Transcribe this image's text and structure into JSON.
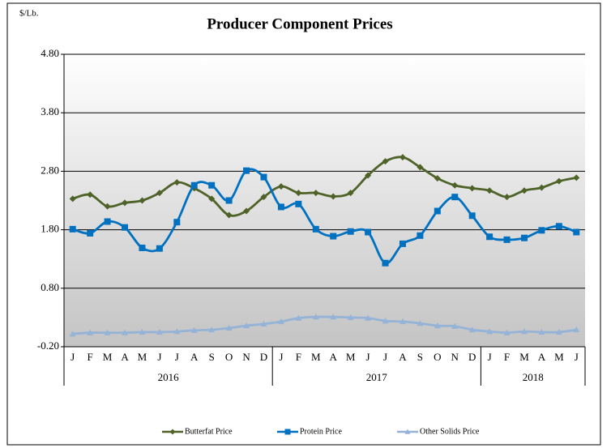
{
  "chart_data": {
    "type": "line",
    "title": "Producer Component Prices",
    "y_label": "$/Lb.",
    "categories": [
      "J",
      "F",
      "M",
      "A",
      "M",
      "J",
      "J",
      "A",
      "S",
      "O",
      "N",
      "D",
      "J",
      "F",
      "M",
      "A",
      "M",
      "J",
      "J",
      "A",
      "S",
      "O",
      "N",
      "D",
      "J",
      "F",
      "M",
      "A",
      "M",
      "J"
    ],
    "groups": [
      {
        "label": "2016",
        "count": 12
      },
      {
        "label": "2017",
        "count": 12
      },
      {
        "label": "2018",
        "count": 6
      }
    ],
    "ylim": [
      -0.2,
      4.8
    ],
    "yticks": [
      {
        "value": -0.2,
        "label": "-0.20"
      },
      {
        "value": 0.8,
        "label": "0.80"
      },
      {
        "value": 1.8,
        "label": "1.80"
      },
      {
        "value": 2.8,
        "label": "2.80"
      },
      {
        "value": 3.8,
        "label": "3.80"
      },
      {
        "value": 4.8,
        "label": "4.80"
      }
    ],
    "grid": true,
    "smooth": true,
    "legend": "bottom",
    "series": [
      {
        "name": "Butterfat Price",
        "color": "#4f6228",
        "marker": "diamond",
        "values": [
          2.33,
          2.4,
          2.2,
          2.26,
          2.3,
          2.43,
          2.61,
          2.51,
          2.33,
          2.05,
          2.12,
          2.36,
          2.54,
          2.43,
          2.43,
          2.37,
          2.43,
          2.73,
          2.97,
          3.04,
          2.87,
          2.68,
          2.56,
          2.51,
          2.47,
          2.36,
          2.47,
          2.52,
          2.63,
          2.69
        ]
      },
      {
        "name": "Protein Price",
        "color": "#0070c0",
        "marker": "square",
        "values": [
          1.81,
          1.74,
          1.94,
          1.84,
          1.49,
          1.48,
          1.93,
          2.56,
          2.56,
          2.3,
          2.81,
          2.7,
          2.19,
          2.24,
          1.81,
          1.69,
          1.77,
          1.76,
          1.23,
          1.56,
          1.7,
          2.12,
          2.36,
          2.04,
          1.68,
          1.63,
          1.66,
          1.79,
          1.86,
          1.76
        ]
      },
      {
        "name": "Other Solids Price",
        "color": "#95b3d7",
        "marker": "triangle",
        "values": [
          0.02,
          0.04,
          0.04,
          0.04,
          0.05,
          0.05,
          0.06,
          0.08,
          0.09,
          0.12,
          0.16,
          0.19,
          0.23,
          0.29,
          0.31,
          0.31,
          0.3,
          0.29,
          0.24,
          0.23,
          0.2,
          0.16,
          0.15,
          0.09,
          0.06,
          0.04,
          0.06,
          0.05,
          0.05,
          0.09
        ]
      }
    ]
  }
}
